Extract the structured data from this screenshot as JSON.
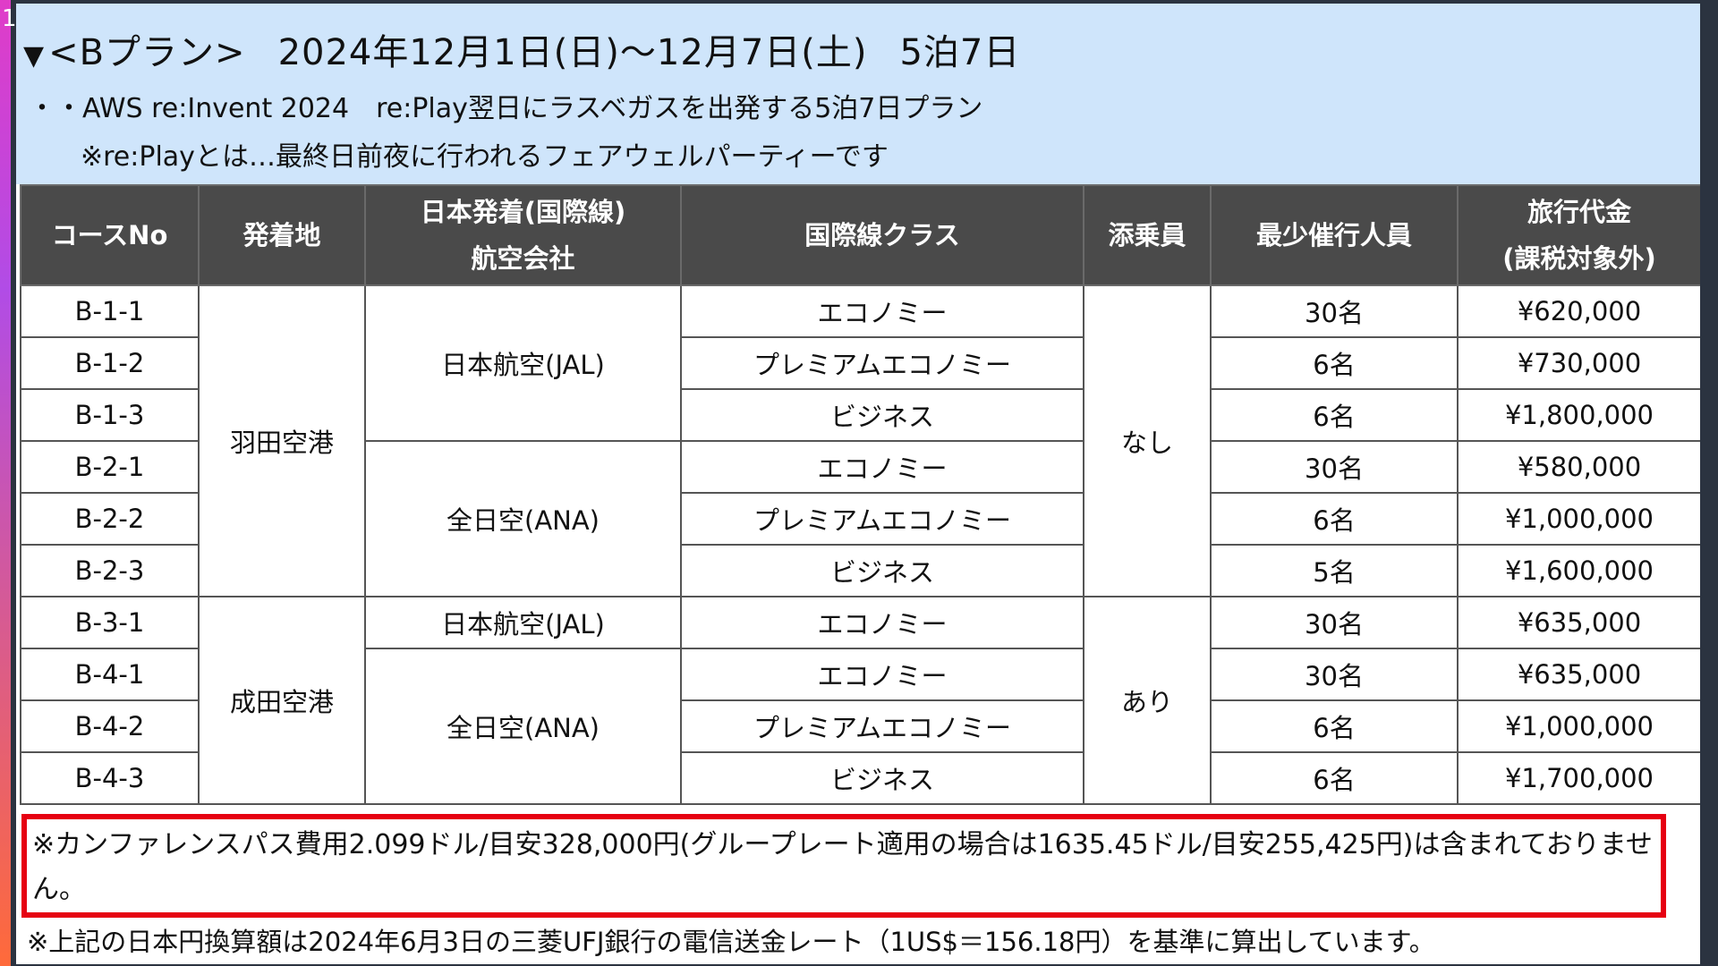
{
  "slide_number": "1",
  "header": {
    "plan_name": "<Bプラン>",
    "date_range": "2024年12月1日(日)〜12月7日(土)",
    "duration": "5泊7日",
    "description": "・・AWS re:Invent 2024　re:Play翌日にラスベガスを出発する5泊7日プラン",
    "note": "※re:Playとは…最終日前夜に行われるフェアウェルパーティーです"
  },
  "table": {
    "headers": {
      "course_no": "コースNo",
      "origin": "発着地",
      "airline_line1": "日本発着(国際線)",
      "airline_line2": "航空会社",
      "seat_class": "国際線クラス",
      "escort": "添乗員",
      "min_participants": "最少催行人員",
      "price_line1": "旅行代金",
      "price_line2": "(課税対象外)"
    },
    "origins": [
      "羽田空港",
      "成田空港"
    ],
    "airlines": [
      "日本航空(JAL)",
      "全日空(ANA)",
      "日本航空(JAL)",
      "全日空(ANA)"
    ],
    "escorts": [
      "なし",
      "あり"
    ],
    "rows": [
      {
        "course": "B-1-1",
        "class": "エコノミー",
        "min": "30名",
        "price": "¥620,000"
      },
      {
        "course": "B-1-2",
        "class": "プレミアムエコノミー",
        "min": "6名",
        "price": "¥730,000"
      },
      {
        "course": "B-1-3",
        "class": "ビジネス",
        "min": "6名",
        "price": "¥1,800,000"
      },
      {
        "course": "B-2-1",
        "class": "エコノミー",
        "min": "30名",
        "price": "¥580,000"
      },
      {
        "course": "B-2-2",
        "class": "プレミアムエコノミー",
        "min": "6名",
        "price": "¥1,000,000"
      },
      {
        "course": "B-2-3",
        "class": "ビジネス",
        "min": "5名",
        "price": "¥1,600,000"
      },
      {
        "course": "B-3-1",
        "class": "エコノミー",
        "min": "30名",
        "price": "¥635,000"
      },
      {
        "course": "B-4-1",
        "class": "エコノミー",
        "min": "30名",
        "price": "¥635,000"
      },
      {
        "course": "B-4-2",
        "class": "プレミアムエコノミー",
        "min": "6名",
        "price": "¥1,000,000"
      },
      {
        "course": "B-4-3",
        "class": "ビジネス",
        "min": "6名",
        "price": "¥1,700,000"
      }
    ]
  },
  "notes": {
    "conference_pass": "※カンファレンスパス費用2.099ドル/目安328,000円(グループレート適用の場合は1635.45ドル/目安255,425円)は含まれておりません。",
    "exchange_rate": "※上記の日本円換算額は2024年6月3日の三菱UFJ銀行の電信送金レート（1US$＝156.18円）を基準に算出しています。"
  },
  "colors": {
    "header_bg": "#cfe5fb",
    "table_header_bg": "#4a4a4a",
    "highlight_border": "#e60012"
  }
}
